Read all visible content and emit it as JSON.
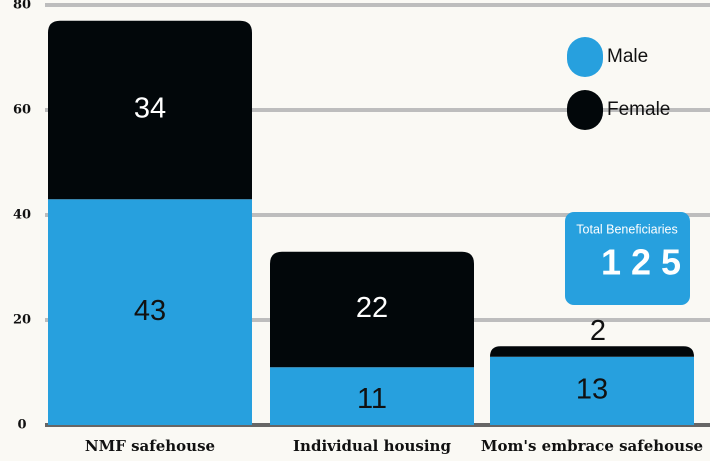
{
  "chart_data": {
    "type": "stacked_bar",
    "categories": [
      "NMF safehouse",
      "Individual housing",
      "Mom's embrace safehouse"
    ],
    "series": [
      {
        "name": "Male",
        "color": "#27a0de",
        "values": [
          43,
          11,
          13
        ]
      },
      {
        "name": "Female",
        "color": "#02070a",
        "values": [
          34,
          22,
          2
        ]
      }
    ],
    "ylim": [
      0,
      80
    ],
    "yticks": [
      0,
      20,
      40,
      60,
      80
    ],
    "grid": true,
    "legend": "upper right",
    "total_box": {
      "label": "Total Beneficiaries",
      "value": "1 2 5"
    }
  }
}
